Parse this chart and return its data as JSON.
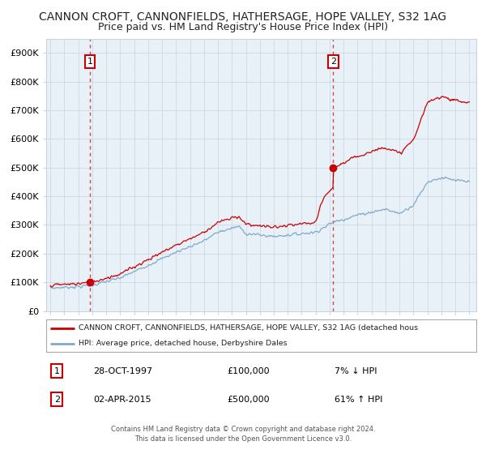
{
  "title": "CANNON CROFT, CANNONFIELDS, HATHERSAGE, HOPE VALLEY, S32 1AG",
  "subtitle": "Price paid vs. HM Land Registry's House Price Index (HPI)",
  "ylabel_ticks": [
    "£0",
    "£100K",
    "£200K",
    "£300K",
    "£400K",
    "£500K",
    "£600K",
    "£700K",
    "£800K",
    "£900K"
  ],
  "ytick_values": [
    0,
    100000,
    200000,
    300000,
    400000,
    500000,
    600000,
    700000,
    800000,
    900000
  ],
  "ylim": [
    0,
    950000
  ],
  "xlim_start": 1994.7,
  "xlim_end": 2025.5,
  "sale1_x": 1997.83,
  "sale1_y": 100000,
  "sale1_label": "1",
  "sale1_date": "28-OCT-1997",
  "sale1_price": "£100,000",
  "sale1_hpi": "7% ↓ HPI",
  "sale2_x": 2015.25,
  "sale2_y": 500000,
  "sale2_label": "2",
  "sale2_date": "02-APR-2015",
  "sale2_price": "£500,000",
  "sale2_hpi": "61% ↑ HPI",
  "line_color_property": "#cc0000",
  "line_color_hpi": "#7faacc",
  "plot_bg_color": "#e8f0f8",
  "legend_property_label": "CANNON CROFT, CANNONFIELDS, HATHERSAGE, HOPE VALLEY, S32 1AG (detached hous",
  "legend_hpi_label": "HPI: Average price, detached house, Derbyshire Dales",
  "footer_line1": "Contains HM Land Registry data © Crown copyright and database right 2024.",
  "footer_line2": "This data is licensed under the Open Government Licence v3.0.",
  "background_color": "#ffffff",
  "grid_color": "#c8d4e0",
  "title_fontsize": 10.0,
  "subtitle_fontsize": 9.0
}
